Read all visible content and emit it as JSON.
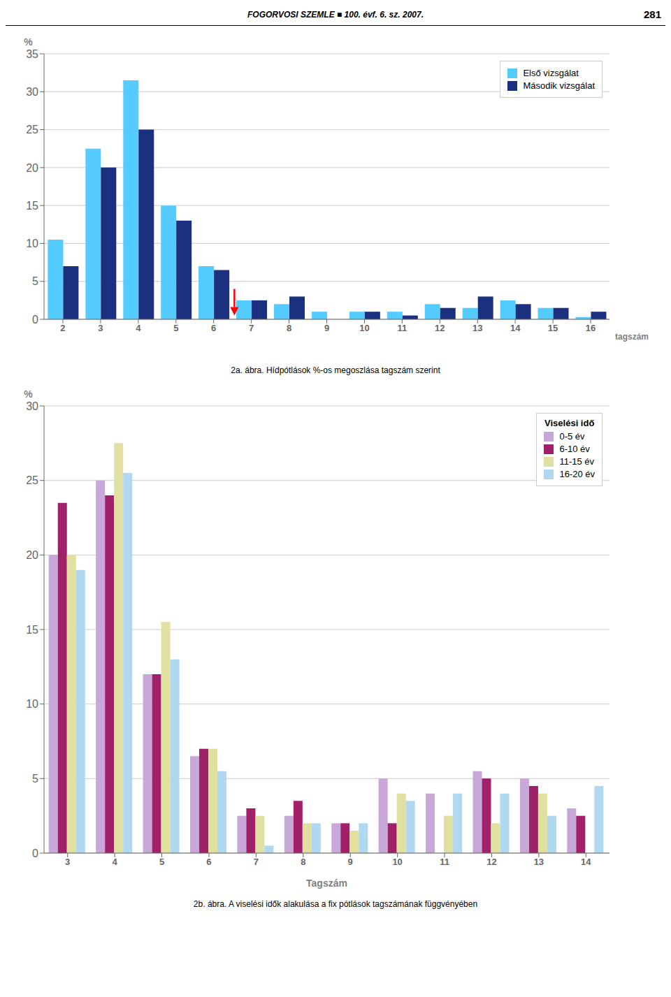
{
  "chart_data": [
    {
      "type": "bar",
      "title": "2a. ábra.  Hídpótlások %-os megoszlása tagszám szerint",
      "ylabel": "%",
      "xlabel": "tagszám",
      "ylim": [
        0,
        35
      ],
      "yticks": [
        0,
        5,
        10,
        15,
        20,
        25,
        30,
        35
      ],
      "categories": [
        2,
        3,
        4,
        5,
        6,
        7,
        8,
        9,
        10,
        11,
        12,
        13,
        14,
        15,
        16
      ],
      "series": [
        {
          "name": "Első vizsgálat",
          "color": "#55CCFF",
          "values": [
            10.5,
            22.5,
            31.5,
            15.0,
            7.0,
            2.5,
            2.0,
            1.0,
            1.0,
            1.0,
            2.0,
            1.5,
            2.5,
            1.5,
            0.3
          ]
        },
        {
          "name": "Második vizsgálat",
          "color": "#1C3080",
          "values": [
            7.0,
            20.0,
            25.0,
            13.0,
            6.5,
            2.5,
            3.0,
            0.0,
            1.0,
            0.5,
            1.5,
            3.0,
            2.0,
            1.5,
            1.0
          ]
        }
      ],
      "grid": true,
      "legend": "upper right",
      "annotations": [
        {
          "text": "FOGORVOSI SZEMLE ■ 100. évf. 6. sz. 2007."
        },
        {
          "text": "281"
        },
        {
          "type": "arrow",
          "after_category": 6,
          "y_from": 4.0,
          "y_to": 0.5,
          "color": "red"
        }
      ]
    },
    {
      "type": "bar",
      "title": "2b. ábra. A viselési idők alakulása a fix pótlások tagszámának függvényében",
      "ylabel": "%",
      "xlabel": "Tagszám",
      "ylim": [
        0,
        30
      ],
      "yticks": [
        0,
        5,
        10,
        15,
        20,
        25,
        30
      ],
      "categories": [
        3,
        4,
        5,
        6,
        7,
        8,
        9,
        10,
        11,
        12,
        13,
        14
      ],
      "series": [
        {
          "name": "0-5 év",
          "color": "#C8A8D8",
          "values": [
            20.0,
            25.0,
            12.0,
            6.5,
            2.5,
            2.5,
            2.0,
            5.0,
            4.0,
            5.5,
            5.0,
            3.0
          ]
        },
        {
          "name": "6-10 év",
          "color": "#A0206A",
          "values": [
            23.5,
            24.0,
            12.0,
            7.0,
            3.0,
            3.5,
            2.0,
            2.0,
            0.0,
            5.0,
            4.5,
            2.5
          ]
        },
        {
          "name": "11-15 év",
          "color": "#E0E0A0",
          "values": [
            20.0,
            27.5,
            15.5,
            7.0,
            2.5,
            2.0,
            1.5,
            4.0,
            2.5,
            2.0,
            4.0,
            0.0
          ]
        },
        {
          "name": "16-20 év",
          "color": "#B0D8F0",
          "values": [
            19.0,
            25.5,
            13.0,
            5.5,
            0.5,
            2.0,
            2.0,
            3.5,
            4.0,
            4.0,
            2.5,
            4.5
          ]
        }
      ],
      "legend_title": "Viselési idő",
      "grid": true,
      "legend": "upper right"
    }
  ]
}
